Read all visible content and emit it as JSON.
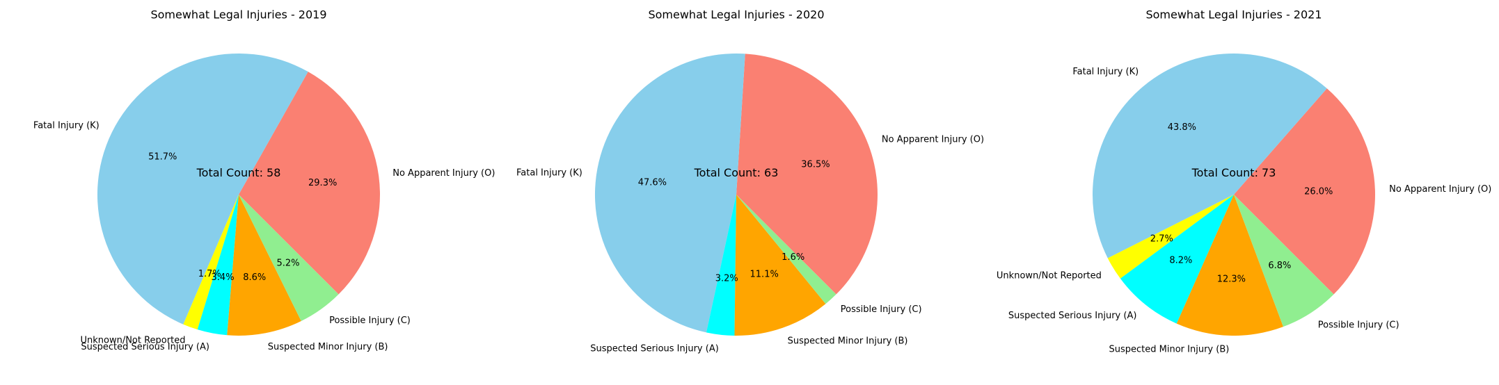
{
  "chart_data": [
    {
      "type": "pie",
      "title": "Somewhat Legal Injuries - 2019",
      "center_text": "Total Count: 58",
      "slices": [
        {
          "label": "No Apparent Injury (O)",
          "value": 29.3,
          "pct_label": "29.3%",
          "color": "#FA8072"
        },
        {
          "label": "Fatal Injury (K)",
          "value": 51.7,
          "pct_label": "51.7%",
          "color": "#87CEEB"
        },
        {
          "label": "Unknown/Not Reported",
          "value": 1.7,
          "pct_label": "1.7%",
          "color": "#FFFF00"
        },
        {
          "label": "Suspected Serious Injury (A)",
          "value": 3.4,
          "pct_label": "3.4%",
          "color": "#00FFFF"
        },
        {
          "label": "Suspected Minor Injury (B)",
          "value": 8.6,
          "pct_label": "8.6%",
          "color": "#FFA500"
        },
        {
          "label": "Possible Injury (C)",
          "value": 5.2,
          "pct_label": "5.2%",
          "color": "#90EE90"
        }
      ]
    },
    {
      "type": "pie",
      "title": "Somewhat Legal Injuries - 2020",
      "center_text": "Total Count: 63",
      "slices": [
        {
          "label": "No Apparent Injury (O)",
          "value": 36.5,
          "pct_label": "36.5%",
          "color": "#FA8072"
        },
        {
          "label": "Fatal Injury (K)",
          "value": 47.6,
          "pct_label": "47.6%",
          "color": "#87CEEB"
        },
        {
          "label": "Suspected Serious Injury (A)",
          "value": 3.2,
          "pct_label": "3.2%",
          "color": "#00FFFF"
        },
        {
          "label": "Suspected Minor Injury (B)",
          "value": 11.1,
          "pct_label": "11.1%",
          "color": "#FFA500"
        },
        {
          "label": "Possible Injury (C)",
          "value": 1.6,
          "pct_label": "1.6%",
          "color": "#90EE90"
        }
      ]
    },
    {
      "type": "pie",
      "title": "Somewhat Legal Injuries - 2021",
      "center_text": "Total Count: 73",
      "slices": [
        {
          "label": "No Apparent Injury (O)",
          "value": 26.0,
          "pct_label": "26.0%",
          "color": "#FA8072"
        },
        {
          "label": "Fatal Injury (K)",
          "value": 43.8,
          "pct_label": "43.8%",
          "color": "#87CEEB"
        },
        {
          "label": "Unknown/Not Reported",
          "value": 2.7,
          "pct_label": "2.7%",
          "color": "#FFFF00"
        },
        {
          "label": "Suspected Serious Injury (A)",
          "value": 8.2,
          "pct_label": "8.2%",
          "color": "#00FFFF"
        },
        {
          "label": "Suspected Minor Injury (B)",
          "value": 12.3,
          "pct_label": "12.3%",
          "color": "#FFA500"
        },
        {
          "label": "Possible Injury (C)",
          "value": 6.8,
          "pct_label": "6.8%",
          "color": "#90EE90"
        }
      ]
    }
  ]
}
